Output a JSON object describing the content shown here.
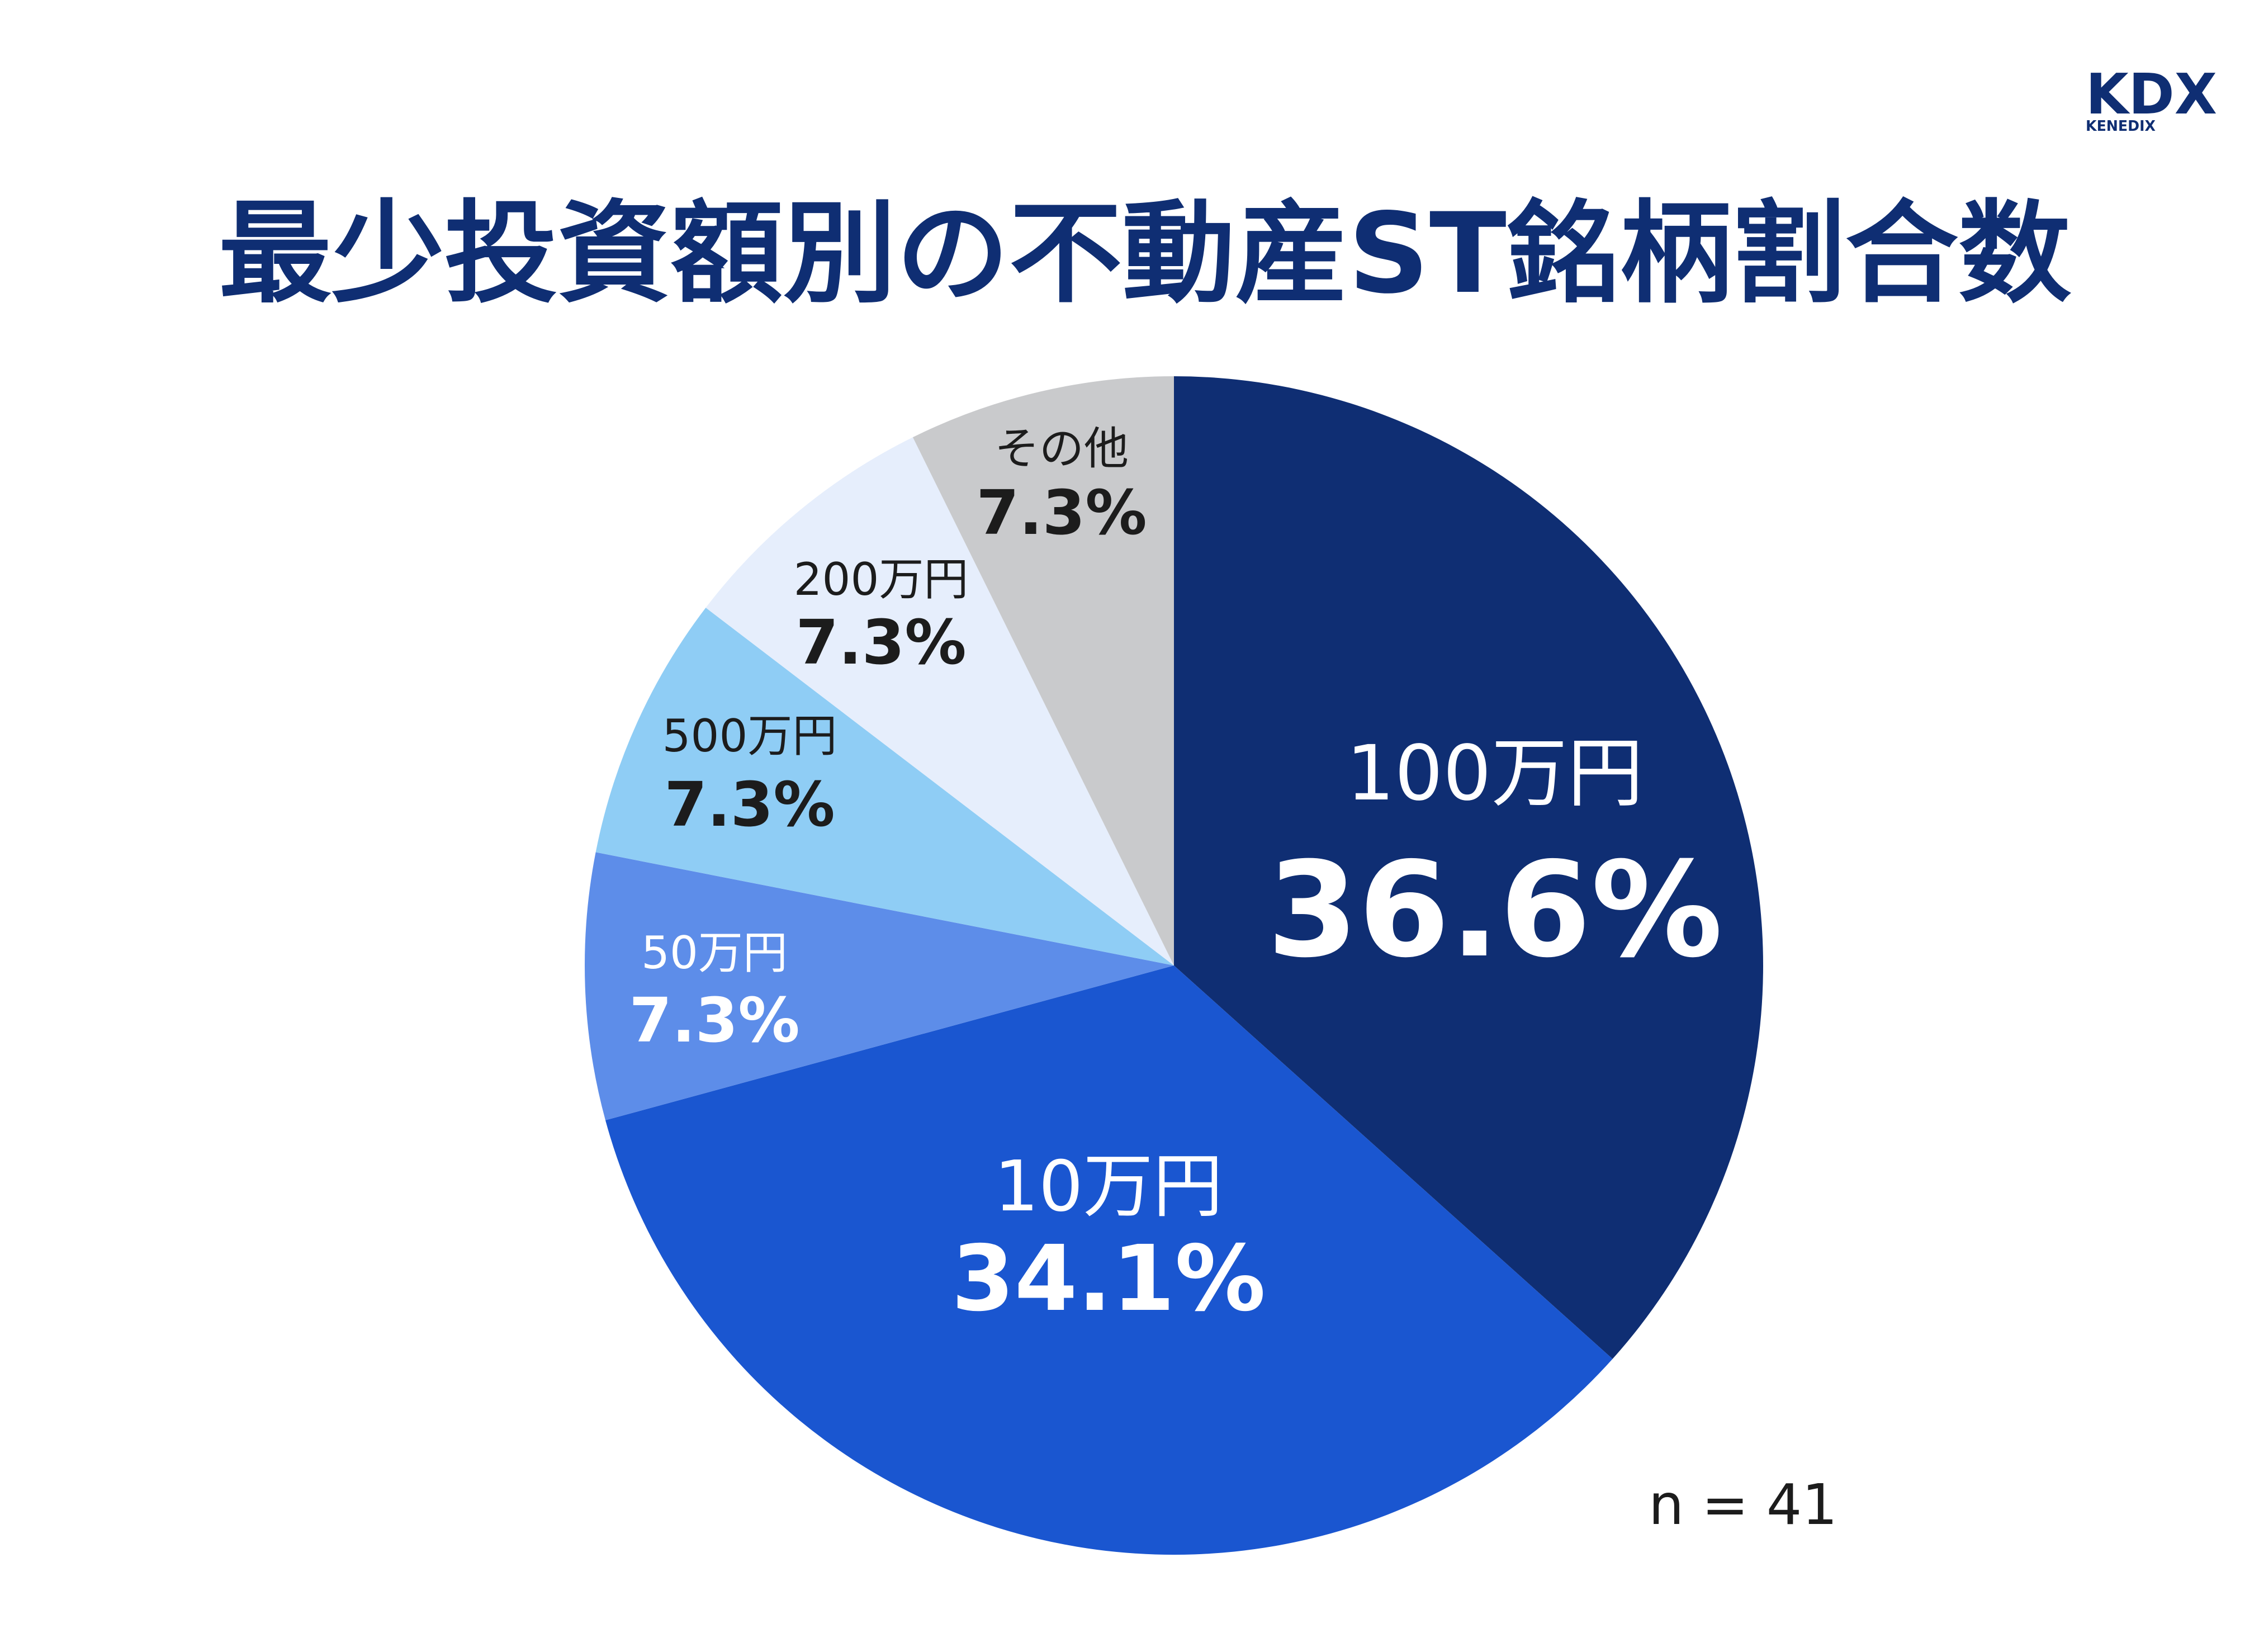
{
  "logo": {
    "main": "KDX",
    "sub": "KENEDIX"
  },
  "chart_data": {
    "type": "pie",
    "title": "最少投資額別の不動産ST銘柄割合数",
    "start": "top",
    "direction": "clockwise",
    "slices": [
      {
        "label": "100万円",
        "value": 36.6,
        "percent_text": "36.6%",
        "color": "#0f2e73"
      },
      {
        "label": "10万円",
        "value": 34.1,
        "percent_text": "34.1%",
        "color": "#1a56d0"
      },
      {
        "label": "50万円",
        "value": 7.3,
        "percent_text": "7.3%",
        "color": "#5d8de9"
      },
      {
        "label": "500万円",
        "value": 7.3,
        "percent_text": "7.3%",
        "color": "#8fcdf5"
      },
      {
        "label": "200万円",
        "value": 7.3,
        "percent_text": "7.3%",
        "color": "#e6eefc"
      },
      {
        "label": "その他",
        "value": 7.3,
        "percent_text": "7.3%",
        "color": "#c9cacc"
      }
    ],
    "note": "n = 41"
  }
}
